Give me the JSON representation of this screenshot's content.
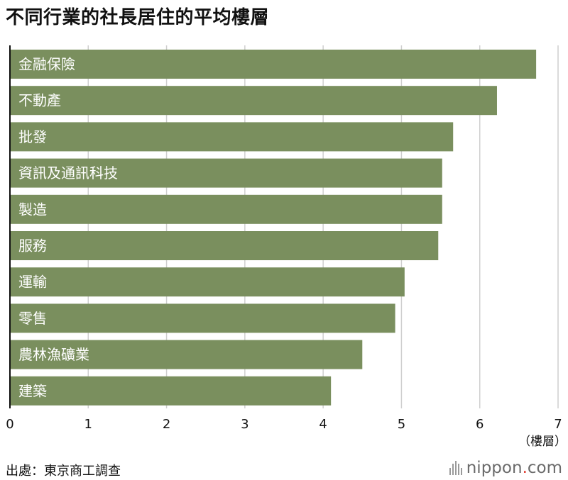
{
  "title": "不同行業的社長居住的平均樓層",
  "source": "出處：東京商工調查",
  "logo": {
    "name": "nippon",
    "dot": ".",
    "tld": "com"
  },
  "chart_data": {
    "type": "bar",
    "orientation": "horizontal",
    "categories": [
      "金融保險",
      "不動產",
      "批發",
      "資訊及通訊科技",
      "製造",
      "服務",
      "運輸",
      "零售",
      "農林漁礦業",
      "建築"
    ],
    "values": [
      6.72,
      6.22,
      5.66,
      5.52,
      5.52,
      5.47,
      5.04,
      4.92,
      4.5,
      4.1
    ],
    "xlim": [
      0,
      7
    ],
    "xticks": [
      "0",
      "1",
      "2",
      "3",
      "4",
      "5",
      "6",
      "7"
    ],
    "xunit": "（樓層）",
    "grid": true,
    "bar_color": "#7a8f5e"
  }
}
